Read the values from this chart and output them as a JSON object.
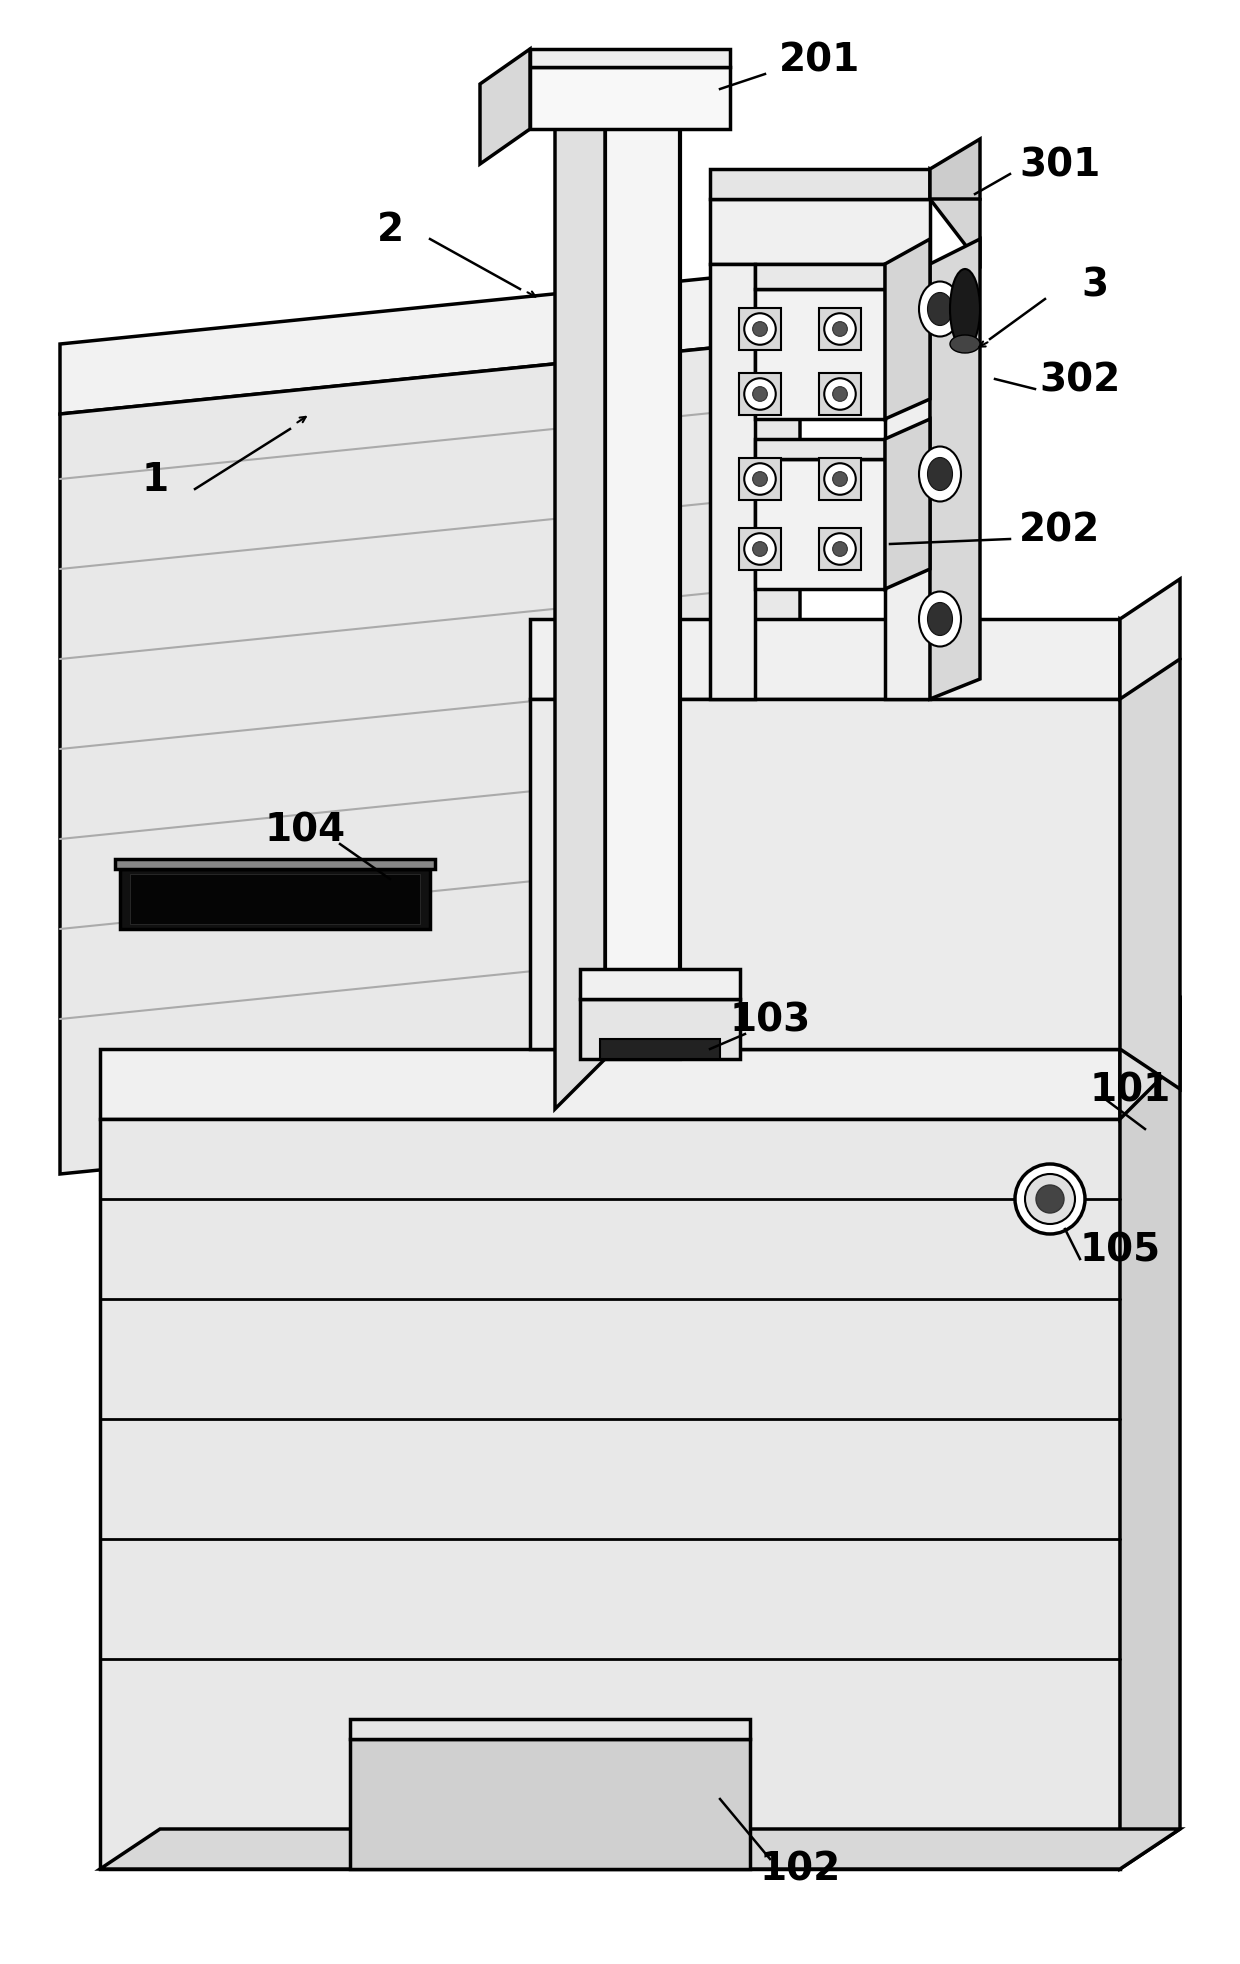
{
  "bg_color": "#ffffff",
  "lc": "#000000",
  "lw": 2.5,
  "tlw": 1.5,
  "fig_width": 12.4,
  "fig_height": 19.65,
  "dpi": 100
}
